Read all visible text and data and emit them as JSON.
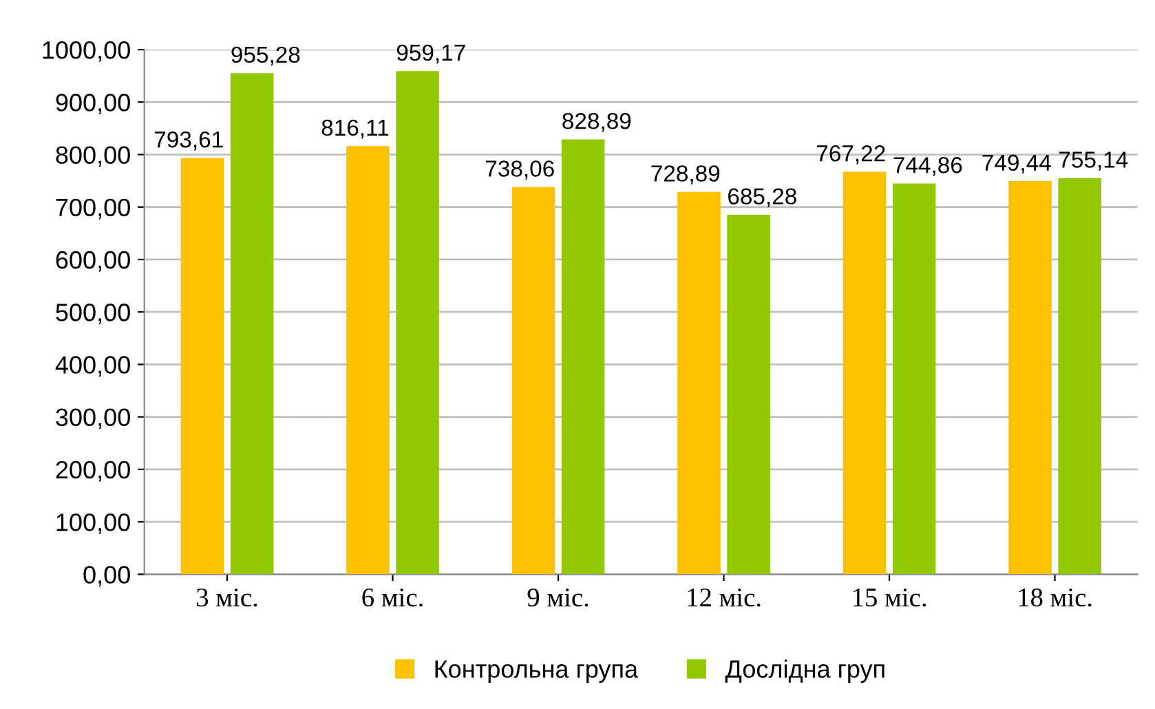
{
  "chart_data": {
    "type": "bar",
    "categories": [
      "3 міс.",
      "6 міс.",
      "9 міс.",
      "12 міс.",
      "15 міс.",
      "18 міс."
    ],
    "series": [
      {
        "name": "Контрольна група",
        "color": "#ffc000",
        "values": [
          793.61,
          816.11,
          738.06,
          728.89,
          767.22,
          749.44
        ],
        "value_labels": [
          "793,61",
          "816,11",
          "738,06",
          "728,89",
          "767,22",
          "749,44"
        ]
      },
      {
        "name": "Дослідна груп",
        "color": "#92c800",
        "values": [
          955.28,
          959.17,
          828.89,
          685.28,
          744.86,
          755.14
        ],
        "value_labels": [
          "955,28",
          "959,17",
          "828,89",
          "685,28",
          "744,86",
          "755,14"
        ]
      }
    ],
    "ylim": [
      0,
      1000
    ],
    "yticks": [
      {
        "value": 0,
        "label": "0,00"
      },
      {
        "value": 100,
        "label": "100,00"
      },
      {
        "value": 200,
        "label": "200,00"
      },
      {
        "value": 300,
        "label": "300,00"
      },
      {
        "value": 400,
        "label": "400,00"
      },
      {
        "value": 500,
        "label": "500,00"
      },
      {
        "value": 600,
        "label": "600,00"
      },
      {
        "value": 700,
        "label": "700,00"
      },
      {
        "value": 800,
        "label": "800,00"
      },
      {
        "value": 900,
        "label": "900,00"
      },
      {
        "value": 1000,
        "label": "1000,00"
      }
    ],
    "grid": "y",
    "legend": "bottom"
  }
}
